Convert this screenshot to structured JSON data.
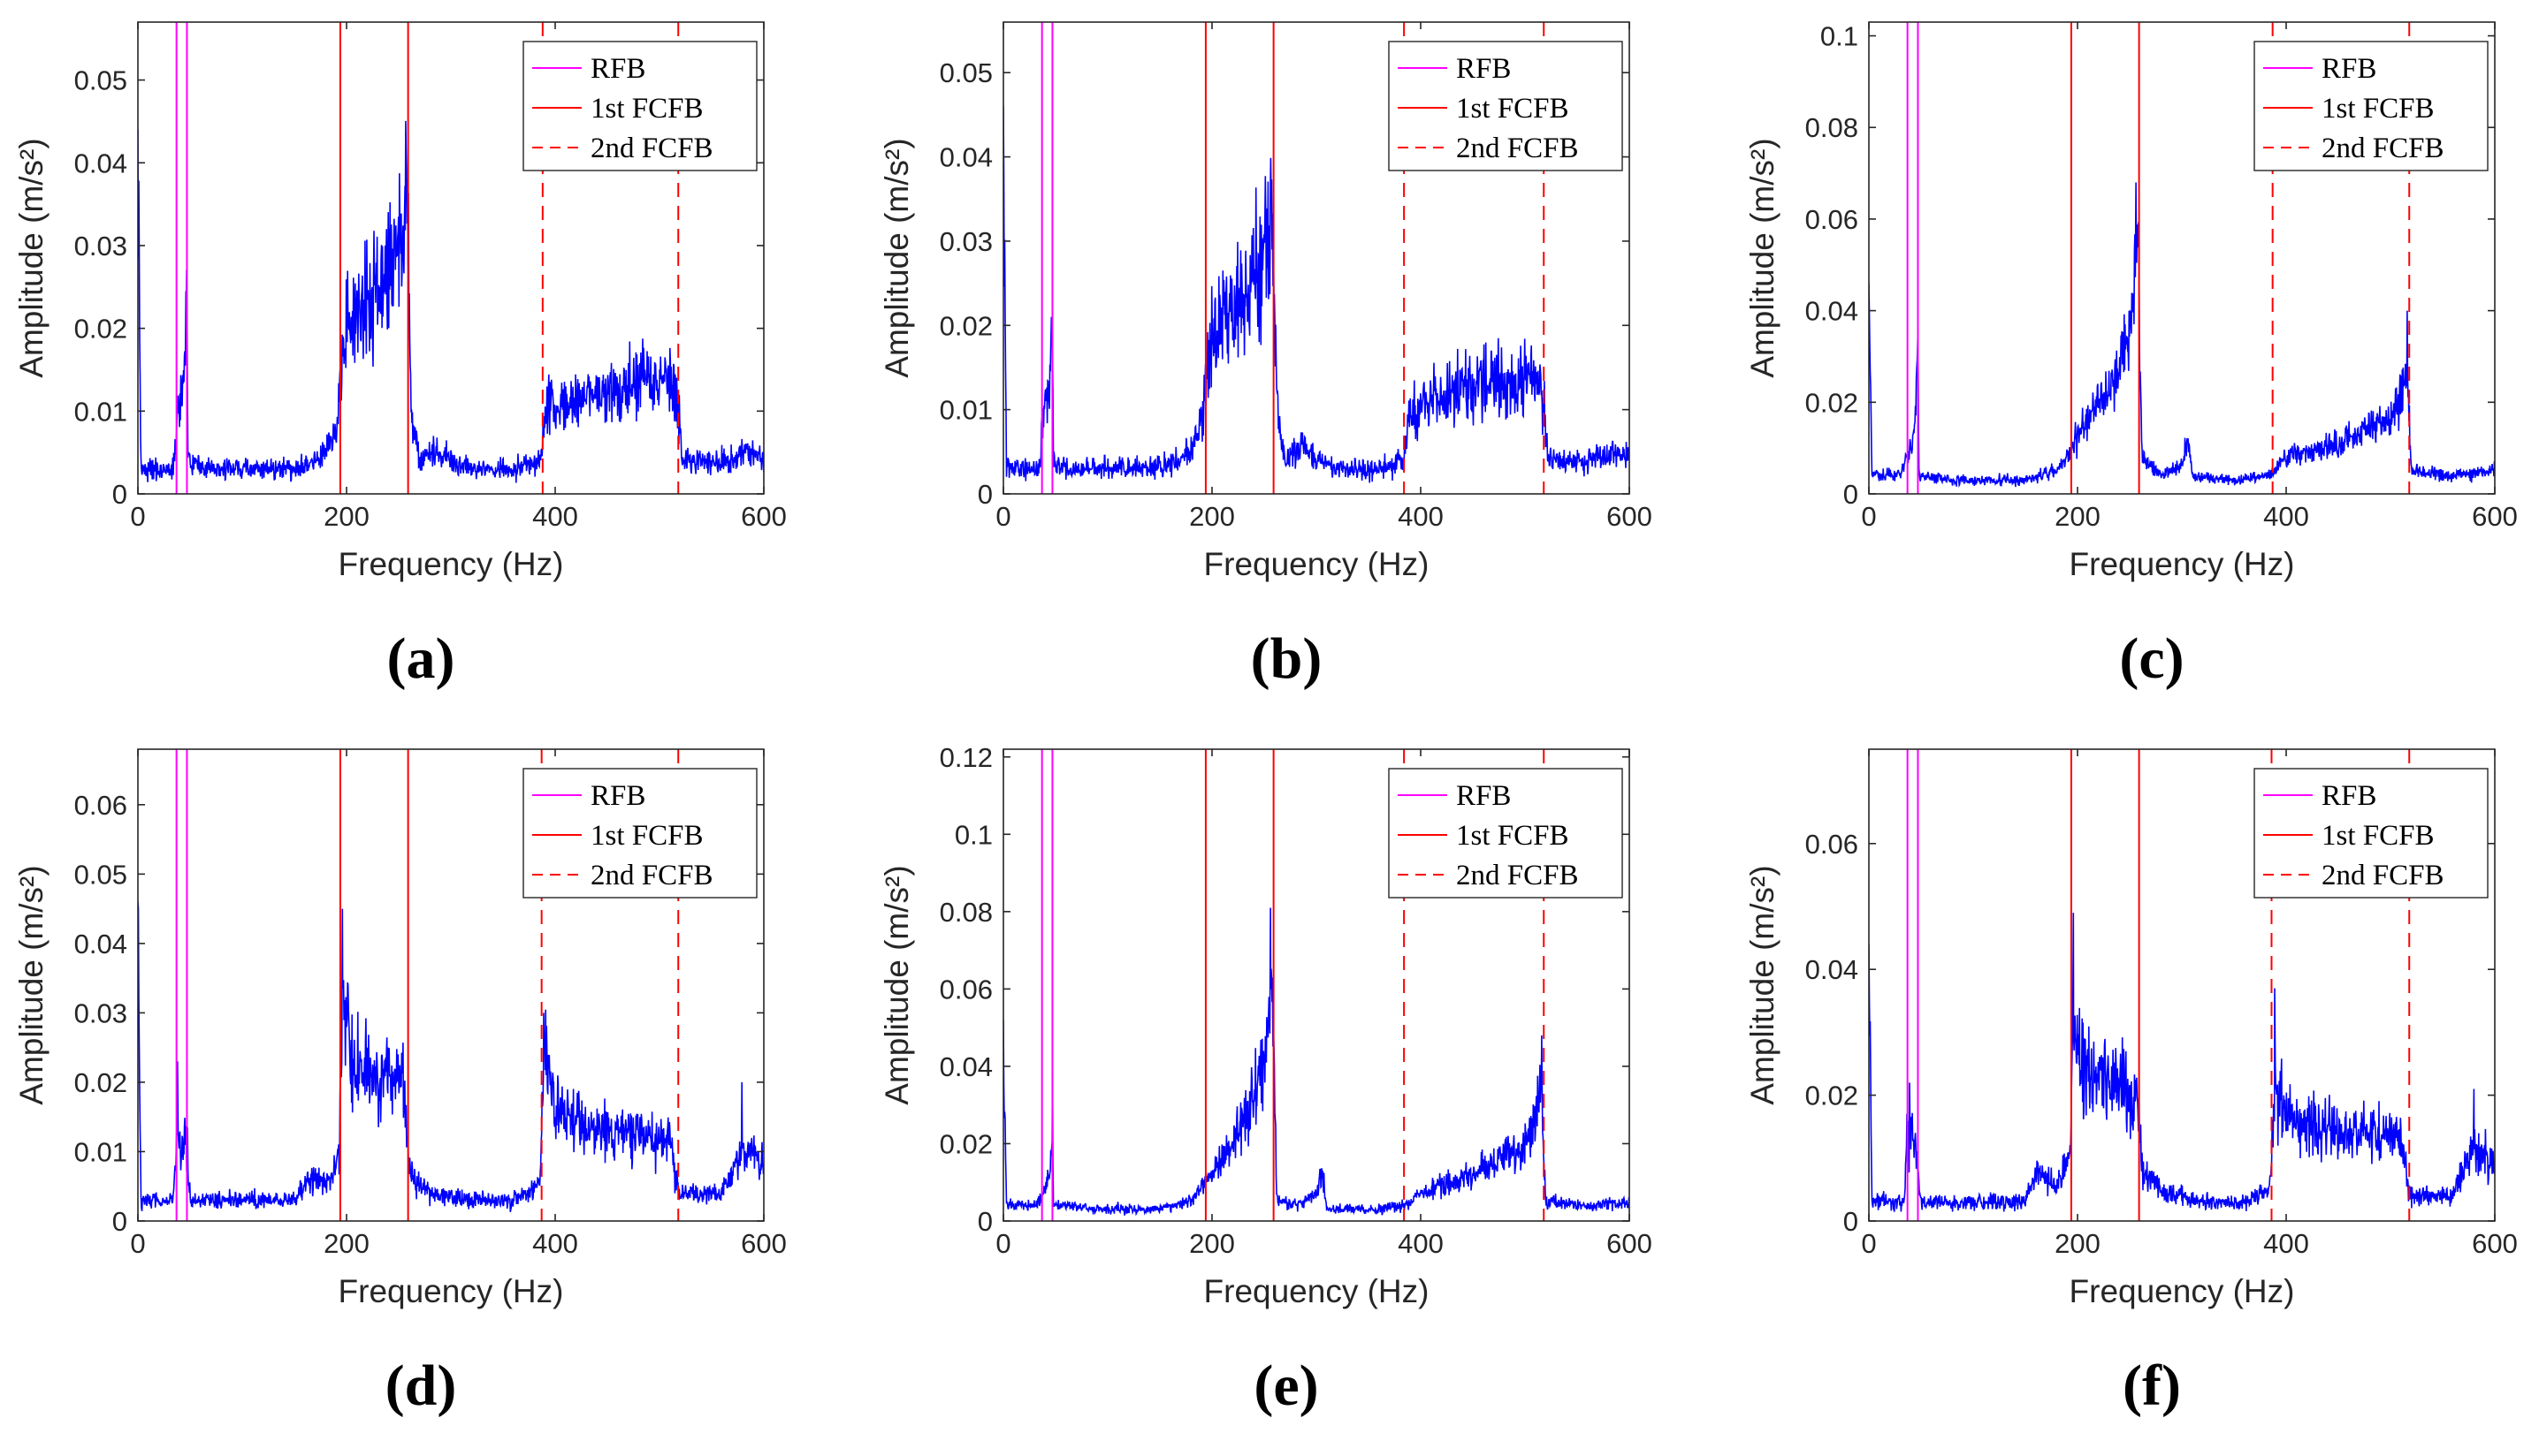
{
  "figure": {
    "panel_labels": [
      "(a)",
      "(b)",
      "(c)",
      "(d)",
      "(e)",
      "(f)"
    ]
  },
  "chart_data": [
    {
      "panel": "(a)",
      "type": "line",
      "xlabel": "Frequency (Hz)",
      "ylabel": "Amplitude (m/s²)",
      "xlim": [
        0,
        600
      ],
      "ylim": [
        0,
        0.057
      ],
      "xticks": [
        0,
        200,
        400,
        600
      ],
      "yticks": [
        0,
        0.01,
        0.02,
        0.03,
        0.04,
        0.05
      ],
      "ytick_labels": [
        "0",
        "0.01",
        "0.02",
        "0.03",
        "0.04",
        "0.05"
      ],
      "legend": [
        "RFB",
        "1st FCFB",
        "2nd FCFB"
      ],
      "bands": {
        "RFB": [
          37,
          47
        ],
        "1st FCFB": [
          194,
          259
        ],
        "2nd FCFB": [
          388,
          518
        ]
      },
      "series": {
        "name": "Spectrum",
        "color": "#0000ff",
        "envelope": [
          [
            0,
            0.044
          ],
          [
            3,
            0.003
          ],
          [
            10,
            0.003
          ],
          [
            34,
            0.003
          ],
          [
            37,
            0.008
          ],
          [
            44,
            0.014
          ],
          [
            47,
            0.025
          ],
          [
            48,
            0.004
          ],
          [
            60,
            0.003
          ],
          [
            100,
            0.003
          ],
          [
            150,
            0.003
          ],
          [
            170,
            0.004
          ],
          [
            185,
            0.006
          ],
          [
            192,
            0.01
          ],
          [
            198,
            0.02
          ],
          [
            215,
            0.022
          ],
          [
            235,
            0.025
          ],
          [
            250,
            0.03
          ],
          [
            258,
            0.036
          ],
          [
            262,
            0.01
          ],
          [
            270,
            0.004
          ],
          [
            280,
            0.005
          ],
          [
            300,
            0.004
          ],
          [
            320,
            0.003
          ],
          [
            360,
            0.003
          ],
          [
            386,
            0.004
          ],
          [
            392,
            0.01
          ],
          [
            430,
            0.012
          ],
          [
            470,
            0.013
          ],
          [
            510,
            0.014
          ],
          [
            518,
            0.011
          ],
          [
            522,
            0.004
          ],
          [
            560,
            0.004
          ],
          [
            585,
            0.005
          ],
          [
            600,
            0.004
          ]
        ],
        "noise": 0.36,
        "spikes": [
          [
            46,
            0.0245
          ],
          [
            256,
            0.0372
          ],
          [
            0,
            0.044
          ]
        ]
      }
    },
    {
      "panel": "(b)",
      "type": "line",
      "xlabel": "Frequency (Hz)",
      "ylabel": "Amplitude (m/s²)",
      "xlim": [
        0,
        600
      ],
      "ylim": [
        0,
        0.056
      ],
      "xticks": [
        0,
        200,
        400,
        600
      ],
      "yticks": [
        0,
        0.01,
        0.02,
        0.03,
        0.04,
        0.05
      ],
      "ytick_labels": [
        "0",
        "0.01",
        "0.02",
        "0.03",
        "0.04",
        "0.05"
      ],
      "legend": [
        "RFB",
        "1st FCFB",
        "2nd FCFB"
      ],
      "bands": {
        "RFB": [
          37,
          47
        ],
        "1st FCFB": [
          194,
          259
        ],
        "2nd FCFB": [
          384,
          518
        ]
      },
      "series": {
        "name": "Spectrum",
        "color": "#0000ff",
        "envelope": [
          [
            0,
            0.046
          ],
          [
            3,
            0.003
          ],
          [
            10,
            0.003
          ],
          [
            34,
            0.003
          ],
          [
            37,
            0.008
          ],
          [
            44,
            0.013
          ],
          [
            47,
            0.021
          ],
          [
            48,
            0.004
          ],
          [
            60,
            0.003
          ],
          [
            100,
            0.003
          ],
          [
            150,
            0.003
          ],
          [
            170,
            0.004
          ],
          [
            185,
            0.006
          ],
          [
            192,
            0.01
          ],
          [
            198,
            0.018
          ],
          [
            215,
            0.021
          ],
          [
            235,
            0.024
          ],
          [
            250,
            0.028
          ],
          [
            258,
            0.034
          ],
          [
            262,
            0.01
          ],
          [
            270,
            0.004
          ],
          [
            285,
            0.006
          ],
          [
            300,
            0.004
          ],
          [
            320,
            0.003
          ],
          [
            360,
            0.003
          ],
          [
            384,
            0.004
          ],
          [
            390,
            0.01
          ],
          [
            430,
            0.012
          ],
          [
            470,
            0.013
          ],
          [
            510,
            0.014
          ],
          [
            518,
            0.011
          ],
          [
            522,
            0.004
          ],
          [
            560,
            0.004
          ],
          [
            585,
            0.005
          ],
          [
            600,
            0.004
          ]
        ],
        "noise": 0.36,
        "spikes": [
          [
            46,
            0.021
          ],
          [
            256,
            0.0372
          ],
          [
            0,
            0.046
          ]
        ]
      }
    },
    {
      "panel": "(c)",
      "type": "line",
      "xlabel": "Frequency (Hz)",
      "ylabel": "Amplitude (m/s²)",
      "xlim": [
        0,
        600
      ],
      "ylim": [
        0,
        0.103
      ],
      "xticks": [
        0,
        200,
        400,
        600
      ],
      "yticks": [
        0,
        0.02,
        0.04,
        0.06,
        0.08,
        0.1
      ],
      "ytick_labels": [
        "0",
        "0.02",
        "0.04",
        "0.06",
        "0.08",
        "0.1"
      ],
      "legend": [
        "RFB",
        "1st FCFB",
        "2nd FCFB"
      ],
      "bands": {
        "RFB": [
          37,
          47
        ],
        "1st FCFB": [
          194,
          259
        ],
        "2nd FCFB": [
          387,
          518
        ]
      },
      "series": {
        "name": "Spectrum",
        "color": "#0000ff",
        "envelope": [
          [
            0,
            0.046
          ],
          [
            3,
            0.004
          ],
          [
            30,
            0.004
          ],
          [
            37,
            0.008
          ],
          [
            44,
            0.015
          ],
          [
            47,
            0.03
          ],
          [
            48,
            0.004
          ],
          [
            80,
            0.003
          ],
          [
            150,
            0.003
          ],
          [
            180,
            0.005
          ],
          [
            195,
            0.01
          ],
          [
            215,
            0.018
          ],
          [
            235,
            0.025
          ],
          [
            250,
            0.035
          ],
          [
            258,
            0.055
          ],
          [
            262,
            0.008
          ],
          [
            280,
            0.004
          ],
          [
            300,
            0.006
          ],
          [
            306,
            0.012
          ],
          [
            310,
            0.004
          ],
          [
            350,
            0.003
          ],
          [
            385,
            0.004
          ],
          [
            400,
            0.008
          ],
          [
            450,
            0.011
          ],
          [
            500,
            0.016
          ],
          [
            516,
            0.025
          ],
          [
            520,
            0.005
          ],
          [
            560,
            0.004
          ],
          [
            600,
            0.005
          ]
        ],
        "noise": 0.3,
        "spikes": [
          [
            47,
            0.036
          ],
          [
            256,
            0.068
          ],
          [
            516,
            0.04
          ],
          [
            0,
            0.046
          ]
        ]
      }
    },
    {
      "panel": "(d)",
      "type": "line",
      "xlabel": "Frequency (Hz)",
      "ylabel": "Amplitude (m/s²)",
      "xlim": [
        0,
        600
      ],
      "ylim": [
        0,
        0.068
      ],
      "xticks": [
        0,
        200,
        400,
        600
      ],
      "yticks": [
        0,
        0.01,
        0.02,
        0.03,
        0.04,
        0.05,
        0.06
      ],
      "ytick_labels": [
        "0",
        "0.01",
        "0.02",
        "0.03",
        "0.04",
        "0.05",
        "0.06"
      ],
      "legend": [
        "RFB",
        "1st FCFB",
        "2nd FCFB"
      ],
      "bands": {
        "RFB": [
          37,
          47
        ],
        "1st FCFB": [
          194,
          259
        ],
        "2nd FCFB": [
          387,
          518
        ]
      },
      "series": {
        "name": "Spectrum",
        "color": "#0000ff",
        "envelope": [
          [
            0,
            0.046
          ],
          [
            3,
            0.003
          ],
          [
            34,
            0.003
          ],
          [
            37,
            0.012
          ],
          [
            44,
            0.01
          ],
          [
            47,
            0.012
          ],
          [
            50,
            0.003
          ],
          [
            100,
            0.003
          ],
          [
            150,
            0.003
          ],
          [
            165,
            0.006
          ],
          [
            185,
            0.006
          ],
          [
            193,
            0.01
          ],
          [
            196,
            0.032
          ],
          [
            205,
            0.022
          ],
          [
            230,
            0.021
          ],
          [
            255,
            0.02
          ],
          [
            260,
            0.007
          ],
          [
            280,
            0.004
          ],
          [
            320,
            0.003
          ],
          [
            360,
            0.003
          ],
          [
            385,
            0.005
          ],
          [
            390,
            0.025
          ],
          [
            400,
            0.016
          ],
          [
            450,
            0.013
          ],
          [
            510,
            0.012
          ],
          [
            518,
            0.004
          ],
          [
            560,
            0.004
          ],
          [
            580,
            0.01
          ],
          [
            590,
            0.01
          ],
          [
            600,
            0.008
          ]
        ],
        "noise": 0.34,
        "spikes": [
          [
            38,
            0.023
          ],
          [
            196,
            0.045
          ],
          [
            389,
            0.03
          ],
          [
            579,
            0.02
          ],
          [
            0,
            0.046
          ]
        ]
      }
    },
    {
      "panel": "(e)",
      "type": "line",
      "xlabel": "Frequency (Hz)",
      "ylabel": "Amplitude (m/s²)",
      "xlim": [
        0,
        600
      ],
      "ylim": [
        0,
        0.122
      ],
      "xticks": [
        0,
        200,
        400,
        600
      ],
      "yticks": [
        0,
        0.02,
        0.04,
        0.06,
        0.08,
        0.1,
        0.12
      ],
      "ytick_labels": [
        "0",
        "0.02",
        "0.04",
        "0.06",
        "0.08",
        "0.1",
        "0.12"
      ],
      "legend": [
        "RFB",
        "1st FCFB",
        "2nd FCFB"
      ],
      "bands": {
        "RFB": [
          37,
          47
        ],
        "1st FCFB": [
          194,
          259
        ],
        "2nd FCFB": [
          384,
          518
        ]
      },
      "series": {
        "name": "Spectrum",
        "color": "#0000ff",
        "envelope": [
          [
            0,
            0.052
          ],
          [
            3,
            0.004
          ],
          [
            30,
            0.004
          ],
          [
            37,
            0.006
          ],
          [
            44,
            0.012
          ],
          [
            47,
            0.02
          ],
          [
            48,
            0.004
          ],
          [
            100,
            0.003
          ],
          [
            150,
            0.003
          ],
          [
            180,
            0.005
          ],
          [
            195,
            0.01
          ],
          [
            215,
            0.018
          ],
          [
            235,
            0.028
          ],
          [
            250,
            0.04
          ],
          [
            258,
            0.06
          ],
          [
            262,
            0.006
          ],
          [
            280,
            0.004
          ],
          [
            300,
            0.007
          ],
          [
            306,
            0.013
          ],
          [
            310,
            0.003
          ],
          [
            350,
            0.003
          ],
          [
            385,
            0.004
          ],
          [
            400,
            0.007
          ],
          [
            450,
            0.012
          ],
          [
            500,
            0.02
          ],
          [
            516,
            0.032
          ],
          [
            520,
            0.005
          ],
          [
            560,
            0.004
          ],
          [
            600,
            0.005
          ]
        ],
        "noise": 0.34,
        "spikes": [
          [
            47,
            0.039
          ],
          [
            256,
            0.081
          ],
          [
            516,
            0.048
          ],
          [
            0,
            0.052
          ]
        ]
      }
    },
    {
      "panel": "(f)",
      "type": "line",
      "xlabel": "Frequency (Hz)",
      "ylabel": "Amplitude (m/s²)",
      "xlim": [
        0,
        600
      ],
      "ylim": [
        0,
        0.075
      ],
      "xticks": [
        0,
        200,
        400,
        600
      ],
      "yticks": [
        0,
        0.02,
        0.04,
        0.06
      ],
      "ytick_labels": [
        "0",
        "0.02",
        "0.04",
        "0.06"
      ],
      "legend": [
        "RFB",
        "1st FCFB",
        "2nd FCFB"
      ],
      "bands": {
        "RFB": [
          37,
          47
        ],
        "1st FCFB": [
          194,
          259
        ],
        "2nd FCFB": [
          386,
          518
        ]
      },
      "series": {
        "name": "Spectrum",
        "color": "#0000ff",
        "envelope": [
          [
            0,
            0.044
          ],
          [
            3,
            0.003
          ],
          [
            34,
            0.003
          ],
          [
            37,
            0.015
          ],
          [
            44,
            0.012
          ],
          [
            47,
            0.008
          ],
          [
            50,
            0.003
          ],
          [
            100,
            0.003
          ],
          [
            150,
            0.003
          ],
          [
            160,
            0.008
          ],
          [
            180,
            0.006
          ],
          [
            193,
            0.01
          ],
          [
            196,
            0.03
          ],
          [
            210,
            0.024
          ],
          [
            240,
            0.022
          ],
          [
            258,
            0.018
          ],
          [
            262,
            0.008
          ],
          [
            280,
            0.005
          ],
          [
            320,
            0.003
          ],
          [
            360,
            0.003
          ],
          [
            384,
            0.005
          ],
          [
            390,
            0.022
          ],
          [
            400,
            0.016
          ],
          [
            450,
            0.014
          ],
          [
            510,
            0.014
          ],
          [
            518,
            0.004
          ],
          [
            560,
            0.004
          ],
          [
            580,
            0.012
          ],
          [
            590,
            0.01
          ],
          [
            600,
            0.008
          ]
        ],
        "noise": 0.36,
        "spikes": [
          [
            39,
            0.022
          ],
          [
            196,
            0.049
          ],
          [
            389,
            0.037
          ],
          [
            580,
            0.021
          ],
          [
            0,
            0.044
          ]
        ]
      }
    }
  ]
}
